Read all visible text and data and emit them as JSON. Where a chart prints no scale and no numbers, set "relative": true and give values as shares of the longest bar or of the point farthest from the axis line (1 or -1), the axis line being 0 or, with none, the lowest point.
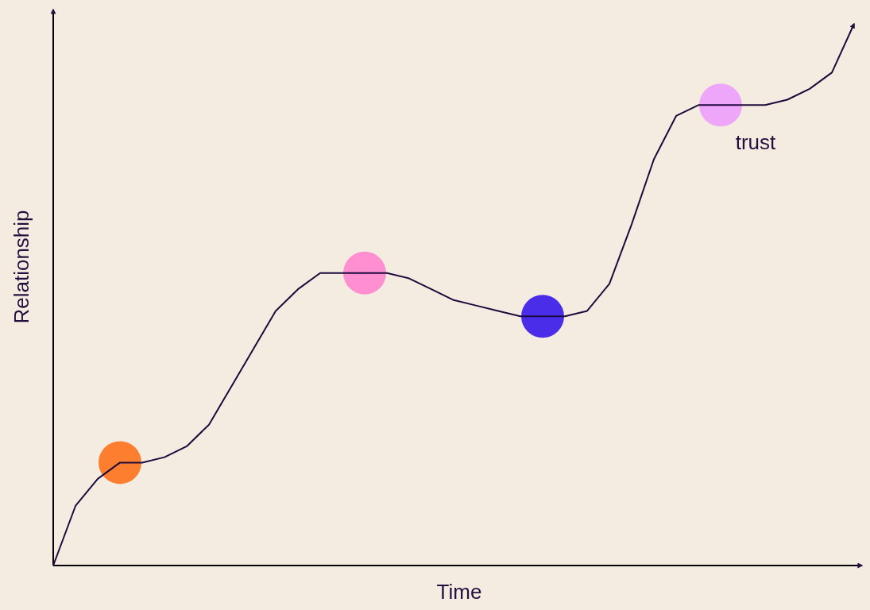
{
  "chart_data": {
    "type": "line",
    "relative": true,
    "xlabel": "Time",
    "ylabel": "Relationship",
    "tick_labels": false,
    "legend": false,
    "grid": false,
    "categories": [
      null,
      null,
      null,
      null,
      null,
      null,
      null,
      null,
      null,
      null,
      null,
      null,
      null,
      null,
      null,
      null,
      null,
      null,
      null,
      null,
      null,
      null,
      null,
      null,
      null,
      null,
      null,
      null,
      null,
      null,
      null,
      null,
      null,
      null,
      null,
      null,
      null
    ],
    "series": [
      {
        "color": "#1e0a3c",
        "values": [
          0,
          0.11,
          0.16,
          0.19,
          0.19,
          0.2,
          0.22,
          0.26,
          0.33,
          0.4,
          0.47,
          0.51,
          0.54,
          0.54,
          0.54,
          0.54,
          0.53,
          0.51,
          0.49,
          0.48,
          0.47,
          0.46,
          0.46,
          0.46,
          0.47,
          0.52,
          0.63,
          0.75,
          0.83,
          0.85,
          0.85,
          0.85,
          0.85,
          0.86,
          0.88,
          0.91,
          1
        ],
        "colors": [
          null,
          null,
          null,
          "#fd7e2e",
          null,
          null,
          null,
          null,
          null,
          null,
          null,
          null,
          null,
          null,
          "#ff8fd0",
          null,
          null,
          null,
          null,
          null,
          null,
          null,
          "#4a2de8",
          null,
          null,
          null,
          null,
          null,
          null,
          null,
          "#eda6f9",
          null,
          null,
          null,
          null,
          null,
          null
        ]
      }
    ],
    "annotations": [
      "trust"
    ]
  }
}
